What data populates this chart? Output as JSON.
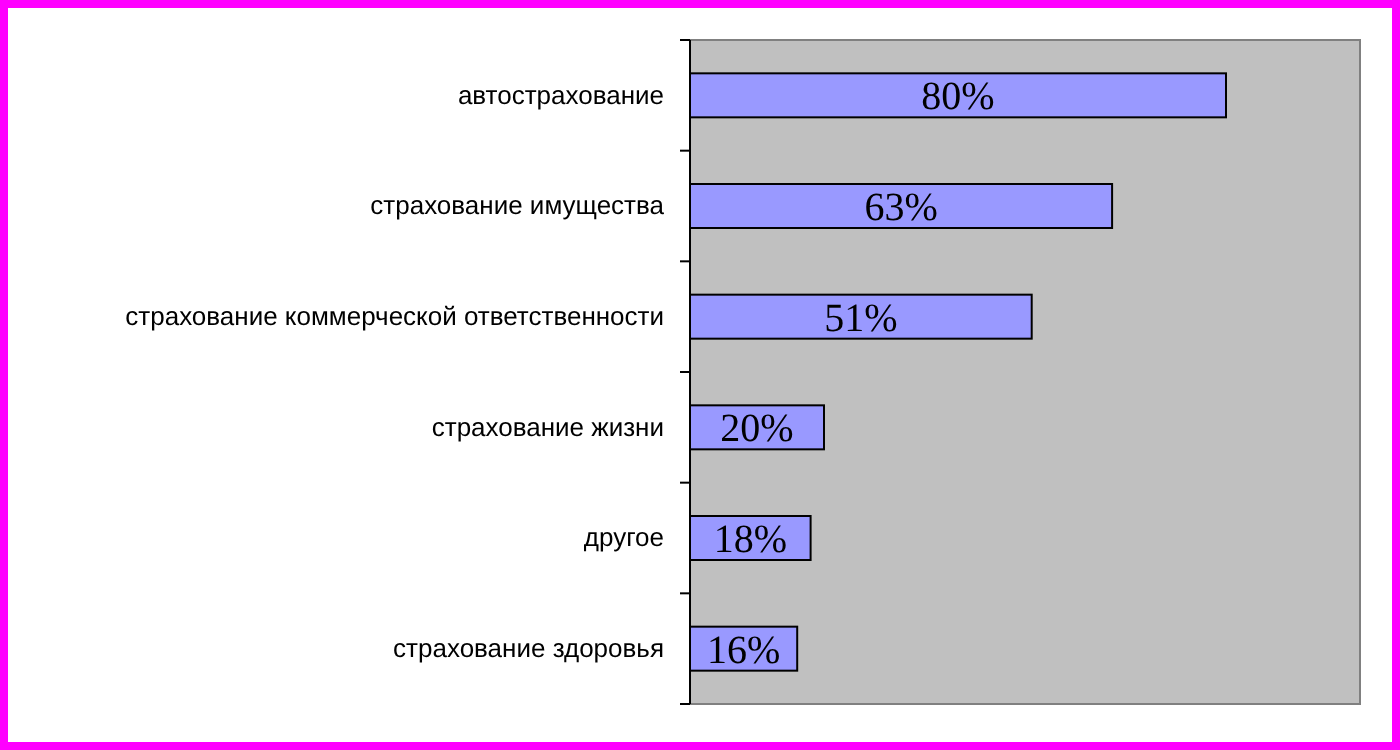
{
  "chart_data": {
    "type": "bar",
    "orientation": "horizontal",
    "categories": [
      "автострахование",
      "страхование имущества",
      "страхование коммерческой ответственности",
      "страхование жизни",
      "другое",
      "страхование здоровья"
    ],
    "values": [
      80,
      63,
      51,
      20,
      18,
      16
    ],
    "value_labels": [
      "80%",
      "63%",
      "51%",
      "20%",
      "18%",
      "16%"
    ],
    "color": "#9999ff",
    "xlim": [
      0,
      100
    ],
    "tick_labels": "y"
  }
}
